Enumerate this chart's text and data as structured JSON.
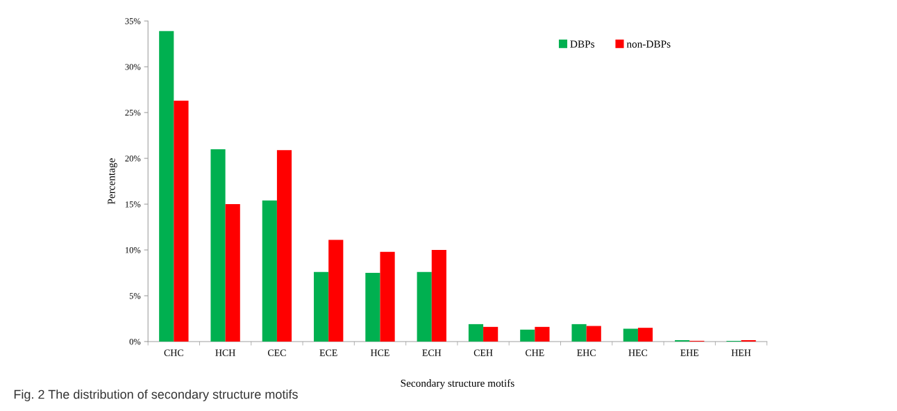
{
  "chart_data": {
    "type": "bar",
    "xlabel": "Secondary structure motifs",
    "ylabel": "Percentage",
    "categories": [
      "CHC",
      "HCH",
      "CEC",
      "ECE",
      "HCE",
      "ECH",
      "CEH",
      "CHE",
      "EHC",
      "HEC",
      "EHE",
      "HEH"
    ],
    "series": [
      {
        "name": "DBPs",
        "color": "#00b050",
        "values": [
          33.9,
          21.0,
          15.4,
          7.6,
          7.5,
          7.6,
          1.9,
          1.3,
          1.9,
          1.4,
          0.15,
          0.08
        ]
      },
      {
        "name": "non-DBPs",
        "color": "#ff0000",
        "values": [
          26.3,
          15.0,
          20.9,
          11.1,
          9.8,
          10.0,
          1.6,
          1.6,
          1.7,
          1.5,
          0.08,
          0.15
        ]
      }
    ],
    "ylim": [
      0,
      35
    ],
    "yticks": [
      {
        "value": 0,
        "label": "0%"
      },
      {
        "value": 5,
        "label": "5%"
      },
      {
        "value": 10,
        "label": "10%"
      },
      {
        "value": 15,
        "label": "15%"
      },
      {
        "value": 20,
        "label": "20%"
      },
      {
        "value": 25,
        "label": "25%"
      },
      {
        "value": 30,
        "label": "30%"
      },
      {
        "value": 35,
        "label": "35%"
      }
    ],
    "grid": false,
    "legend": "top right",
    "annotations": [
      "Fig. 2 The distribution of secondary structure motifs"
    ]
  }
}
